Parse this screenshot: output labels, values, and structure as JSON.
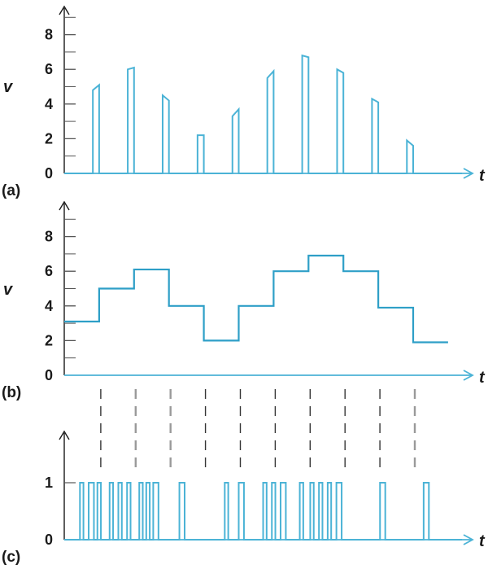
{
  "chart_data": [
    {
      "panel_label": "(a)",
      "type": "line",
      "ylabel": "v",
      "xlabel": "t",
      "ylim": [
        0,
        9
      ],
      "yticks": [
        0,
        2,
        4,
        6,
        8
      ],
      "pulse_times": [
        1,
        2,
        3,
        4,
        5,
        6,
        7,
        8,
        9,
        10
      ],
      "pulse_values_start": [
        4.8,
        6.0,
        4.5,
        2.2,
        3.3,
        5.5,
        6.8,
        6.0,
        4.3,
        1.9
      ],
      "pulse_values_end": [
        5.1,
        6.1,
        4.2,
        2.2,
        3.7,
        5.9,
        6.7,
        5.8,
        4.1,
        1.6
      ],
      "color": "#4bb3d6"
    },
    {
      "panel_label": "(b)",
      "type": "line",
      "ylabel": "v",
      "xlabel": "t",
      "ylim": [
        0,
        9
      ],
      "yticks": [
        0,
        2,
        4,
        6,
        8
      ],
      "step_x": [
        0,
        1,
        2,
        3,
        4,
        5,
        6,
        7,
        8,
        9,
        10,
        11
      ],
      "step_values": [
        3.1,
        5.0,
        6.1,
        4.0,
        2.0,
        4.0,
        6.0,
        6.9,
        6.0,
        3.9,
        1.9
      ],
      "color": "#2e9fc7"
    },
    {
      "panel_label": "(c)",
      "type": "line",
      "xlabel": "t",
      "ylim": [
        0,
        1.5
      ],
      "yticks": [
        0,
        1
      ],
      "pulse_intervals": [
        [
          0.45,
          0.55
        ],
        [
          0.7,
          0.85
        ],
        [
          0.95,
          1.05
        ],
        [
          1.3,
          1.4
        ],
        [
          1.55,
          1.65
        ],
        [
          1.8,
          1.9
        ],
        [
          2.15,
          2.25
        ],
        [
          2.35,
          2.45
        ],
        [
          2.55,
          2.7
        ],
        [
          3.3,
          3.45
        ],
        [
          4.6,
          4.7
        ],
        [
          5.0,
          5.15
        ],
        [
          5.7,
          5.8
        ],
        [
          5.95,
          6.05
        ],
        [
          6.2,
          6.35
        ],
        [
          6.75,
          6.85
        ],
        [
          7.05,
          7.15
        ],
        [
          7.3,
          7.4
        ],
        [
          7.55,
          7.65
        ],
        [
          7.8,
          7.95
        ],
        [
          9.05,
          9.2
        ],
        [
          10.3,
          10.45
        ]
      ],
      "color": "#4bb3d6"
    }
  ],
  "sample_dividers": {
    "x": [
      1,
      2,
      3,
      4,
      5,
      6,
      7,
      8,
      9,
      10
    ],
    "shade": [
      "dark",
      "light",
      "light",
      "dark",
      "dark",
      "dark",
      "dark",
      "dark",
      "dark",
      "light"
    ]
  },
  "colors": {
    "axis": "#4bb3d6",
    "text": "#1a1a1a",
    "tick": "#555555"
  }
}
